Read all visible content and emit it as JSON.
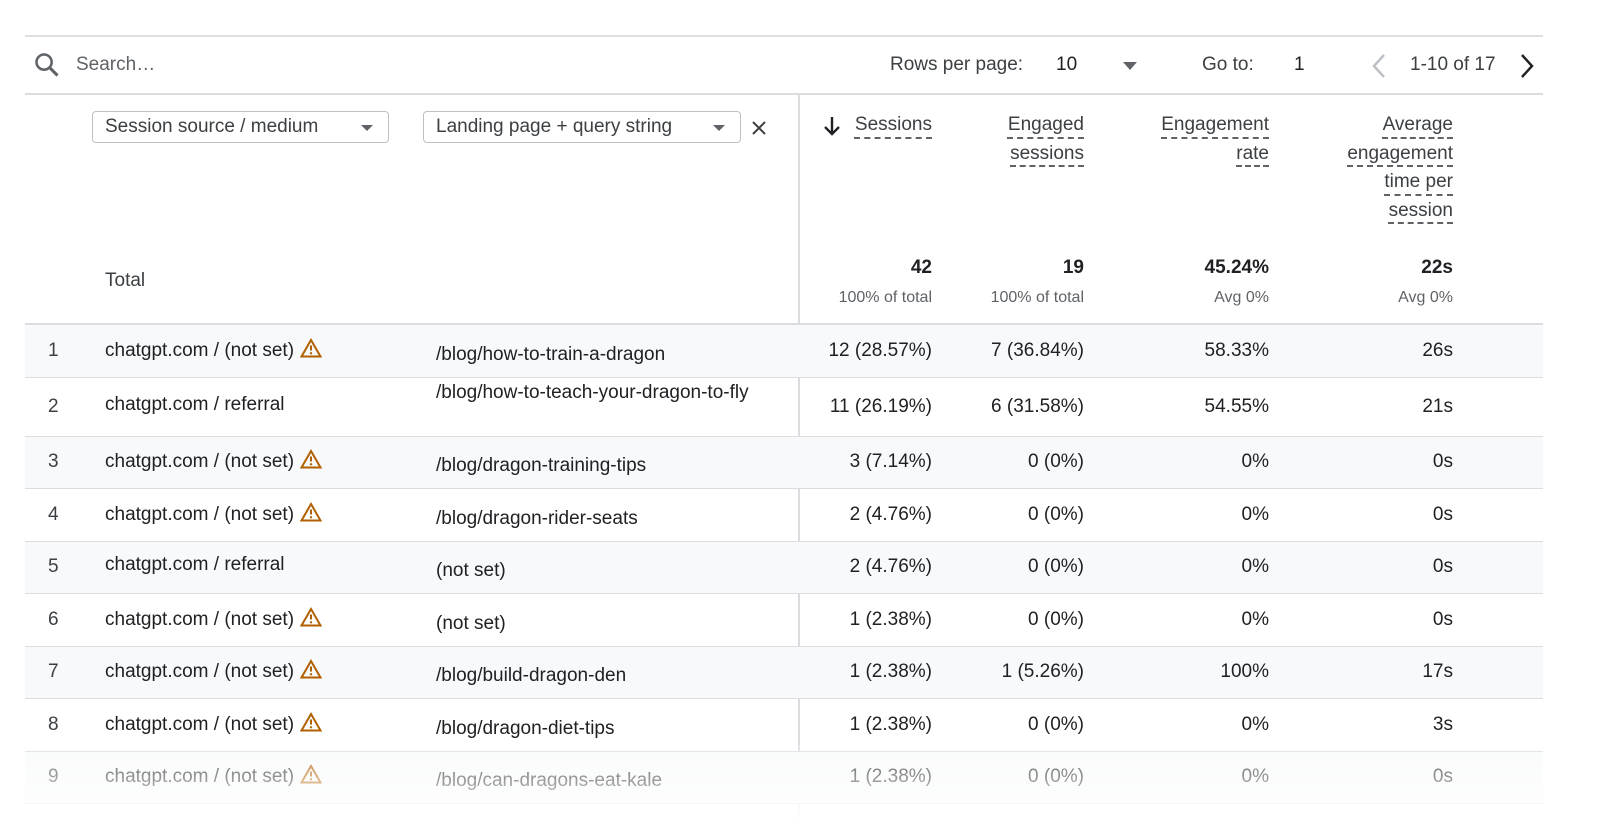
{
  "toolbar": {
    "search_placeholder": "Search…",
    "rows_per_page_label": "Rows per page:",
    "rows_per_page": "10",
    "goto_label": "Go to:",
    "goto_value": "1",
    "pagination": "1-10 of 17"
  },
  "dimensions": [
    "Session source / medium",
    "Landing page + query string"
  ],
  "metrics": [
    "Sessions",
    "Engaged sessions",
    "Engagement rate",
    "Average engagement time per session"
  ],
  "totals": {
    "label": "Total",
    "values": [
      {
        "value": "42",
        "note": "100% of total"
      },
      {
        "value": "19",
        "note": "100% of total"
      },
      {
        "value": "45.24%",
        "note": "Avg 0%"
      },
      {
        "value": "22s",
        "note": "Avg 0%"
      }
    ]
  },
  "rows": [
    {
      "index": "1",
      "source": "chatgpt.com / (not set)",
      "warning": true,
      "landing": "/blog/how-to-train-a-dragon",
      "cells": [
        "12 (28.57%)",
        "7 (36.84%)",
        "58.33%",
        "26s"
      ]
    },
    {
      "index": "2",
      "source": "chatgpt.com / referral",
      "warning": false,
      "landing": "/blog/how-to-teach-your-dragon-to-fly",
      "cells": [
        "11 (26.19%)",
        "6 (31.58%)",
        "54.55%",
        "21s"
      ]
    },
    {
      "index": "3",
      "source": "chatgpt.com / (not set)",
      "warning": true,
      "landing": "/blog/dragon-training-tips",
      "cells": [
        "3 (7.14%)",
        "0 (0%)",
        "0%",
        "0s"
      ]
    },
    {
      "index": "4",
      "source": "chatgpt.com / (not set)",
      "warning": true,
      "landing": "/blog/dragon-rider-seats",
      "cells": [
        "2 (4.76%)",
        "0 (0%)",
        "0%",
        "0s"
      ]
    },
    {
      "index": "5",
      "source": "chatgpt.com / referral",
      "warning": false,
      "landing": "(not set)",
      "cells": [
        "2 (4.76%)",
        "0 (0%)",
        "0%",
        "0s"
      ]
    },
    {
      "index": "6",
      "source": "chatgpt.com / (not set)",
      "warning": true,
      "landing": "(not set)",
      "cells": [
        "1 (2.38%)",
        "0 (0%)",
        "0%",
        "0s"
      ]
    },
    {
      "index": "7",
      "source": "chatgpt.com / (not set)",
      "warning": true,
      "landing": "/blog/build-dragon-den",
      "cells": [
        "1 (2.38%)",
        "1 (5.26%)",
        "100%",
        "17s"
      ]
    },
    {
      "index": "8",
      "source": "chatgpt.com / (not set)",
      "warning": true,
      "landing": "/blog/dragon-diet-tips",
      "cells": [
        "1 (2.38%)",
        "0 (0%)",
        "0%",
        "3s"
      ]
    },
    {
      "index": "9",
      "source": "chatgpt.com / (not set)",
      "warning": true,
      "landing": "/blog/can-dragons-eat-kale",
      "cells": [
        "1 (2.38%)",
        "0 (0%)",
        "0%",
        "0s"
      ]
    }
  ]
}
